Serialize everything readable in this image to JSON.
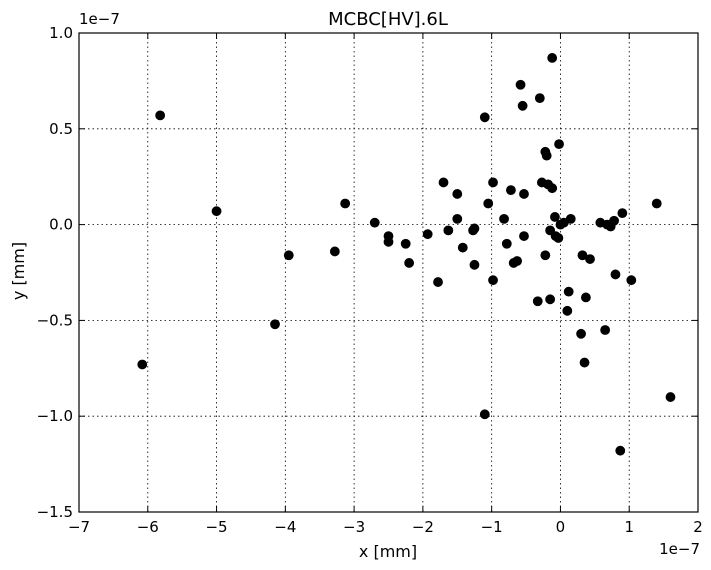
{
  "chart_data": {
    "type": "scatter",
    "title": "MCBC[HV].6L",
    "xlabel": "x [mm]",
    "ylabel": "y [mm]",
    "x_offset_label": "1e−7",
    "y_offset_label": "1e−7",
    "xlim": [
      -7,
      2
    ],
    "ylim": [
      -1.5,
      1.0
    ],
    "grid": true,
    "x_ticks": [
      -7,
      -6,
      -5,
      -4,
      -3,
      -2,
      -1,
      0,
      1,
      2
    ],
    "x_tick_labels": [
      "−7",
      "−6",
      "−5",
      "−4",
      "−3",
      "−2",
      "−1",
      "0",
      "1",
      "2"
    ],
    "y_ticks": [
      -1.5,
      -1.0,
      -0.5,
      0.0,
      0.5,
      1.0
    ],
    "y_tick_labels": [
      "−1.5",
      "−1.0",
      "−0.5",
      "0.0",
      "0.5",
      "1.0"
    ],
    "marker_color": "#000000",
    "points": [
      [
        -6.08,
        -0.73
      ],
      [
        -5.82,
        0.57
      ],
      [
        -5.0,
        0.07
      ],
      [
        -4.15,
        -0.52
      ],
      [
        -3.95,
        -0.16
      ],
      [
        -3.28,
        -0.14
      ],
      [
        -3.13,
        0.11
      ],
      [
        -2.7,
        0.01
      ],
      [
        -2.5,
        -0.06
      ],
      [
        -2.5,
        -0.09
      ],
      [
        -2.25,
        -0.1
      ],
      [
        -2.2,
        -0.2
      ],
      [
        -1.93,
        -0.05
      ],
      [
        -1.78,
        -0.3
      ],
      [
        -1.7,
        0.22
      ],
      [
        -1.63,
        -0.03
      ],
      [
        -1.5,
        0.16
      ],
      [
        -1.5,
        0.03
      ],
      [
        -1.42,
        -0.12
      ],
      [
        -1.27,
        -0.03
      ],
      [
        -1.25,
        -0.02
      ],
      [
        -1.25,
        -0.21
      ],
      [
        -1.1,
        0.56
      ],
      [
        -1.1,
        -0.99
      ],
      [
        -1.05,
        0.11
      ],
      [
        -0.98,
        0.22
      ],
      [
        -0.98,
        -0.29
      ],
      [
        -0.82,
        0.03
      ],
      [
        -0.78,
        -0.1
      ],
      [
        -0.72,
        0.18
      ],
      [
        -0.68,
        -0.2
      ],
      [
        -0.63,
        -0.19
      ],
      [
        -0.58,
        0.73
      ],
      [
        -0.55,
        0.62
      ],
      [
        -0.53,
        0.16
      ],
      [
        -0.53,
        -0.06
      ],
      [
        -0.3,
        0.66
      ],
      [
        -0.33,
        -0.4
      ],
      [
        -0.27,
        0.22
      ],
      [
        -0.22,
        0.38
      ],
      [
        -0.2,
        0.36
      ],
      [
        -0.22,
        -0.16
      ],
      [
        -0.18,
        0.21
      ],
      [
        -0.15,
        -0.39
      ],
      [
        -0.12,
        0.87
      ],
      [
        -0.12,
        0.19
      ],
      [
        -0.15,
        -0.03
      ],
      [
        -0.08,
        0.04
      ],
      [
        -0.07,
        -0.06
      ],
      [
        -0.03,
        -0.07
      ],
      [
        -0.02,
        0.42
      ],
      [
        0.0,
        0.0
      ],
      [
        0.05,
        0.01
      ],
      [
        0.1,
        -0.45
      ],
      [
        0.12,
        -0.35
      ],
      [
        0.15,
        0.03
      ],
      [
        0.3,
        -0.57
      ],
      [
        0.32,
        -0.16
      ],
      [
        0.35,
        -0.72
      ],
      [
        0.37,
        -0.38
      ],
      [
        0.43,
        -0.18
      ],
      [
        0.58,
        0.01
      ],
      [
        0.65,
        -0.55
      ],
      [
        0.68,
        0.0
      ],
      [
        0.73,
        -0.01
      ],
      [
        0.78,
        0.02
      ],
      [
        0.8,
        -0.26
      ],
      [
        0.87,
        -1.18
      ],
      [
        0.9,
        0.06
      ],
      [
        1.03,
        -0.29
      ],
      [
        1.4,
        0.11
      ],
      [
        1.6,
        -0.9
      ]
    ]
  }
}
